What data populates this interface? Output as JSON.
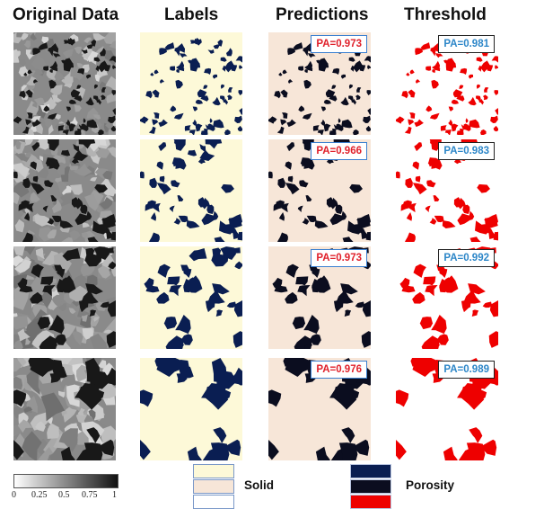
{
  "columns": [
    {
      "title": "Original Data"
    },
    {
      "title": "Labels"
    },
    {
      "title": "Predictions"
    },
    {
      "title": "Threshold"
    }
  ],
  "rows": [
    {
      "prediction_pa": "PA=0.973",
      "threshold_pa": "PA=0.981"
    },
    {
      "prediction_pa": "PA=0.966",
      "threshold_pa": "PA=0.983"
    },
    {
      "prediction_pa": "PA=0.973",
      "threshold_pa": "PA=0.992"
    },
    {
      "prediction_pa": "PA=0.976",
      "threshold_pa": "PA=0.989"
    }
  ],
  "colorbar": {
    "ticks": [
      "0",
      "0.25",
      "0.5",
      "0.75",
      "1"
    ],
    "range": [
      0,
      1
    ],
    "from_color": "#ffffff",
    "to_color": "#111111"
  },
  "legend": {
    "solid_label": "Solid",
    "porosity_label": "Porosity",
    "solid_colors": [
      "#fdf9d8",
      "#f7e6d8",
      "#ffffff"
    ],
    "porosity_colors": [
      "#0a1e52",
      "#0b0d1f",
      "#ee0000"
    ]
  },
  "colors": {
    "label_solid": "#fdf9d8",
    "label_pore": "#0a1e52",
    "prediction_solid": "#f7e6d8",
    "prediction_pore": "#0b0d1f",
    "threshold_solid": "#ffffff",
    "threshold_pore": "#ee0000",
    "pa_prediction_text": "#e0202a",
    "pa_threshold_text": "#2c86c8"
  }
}
